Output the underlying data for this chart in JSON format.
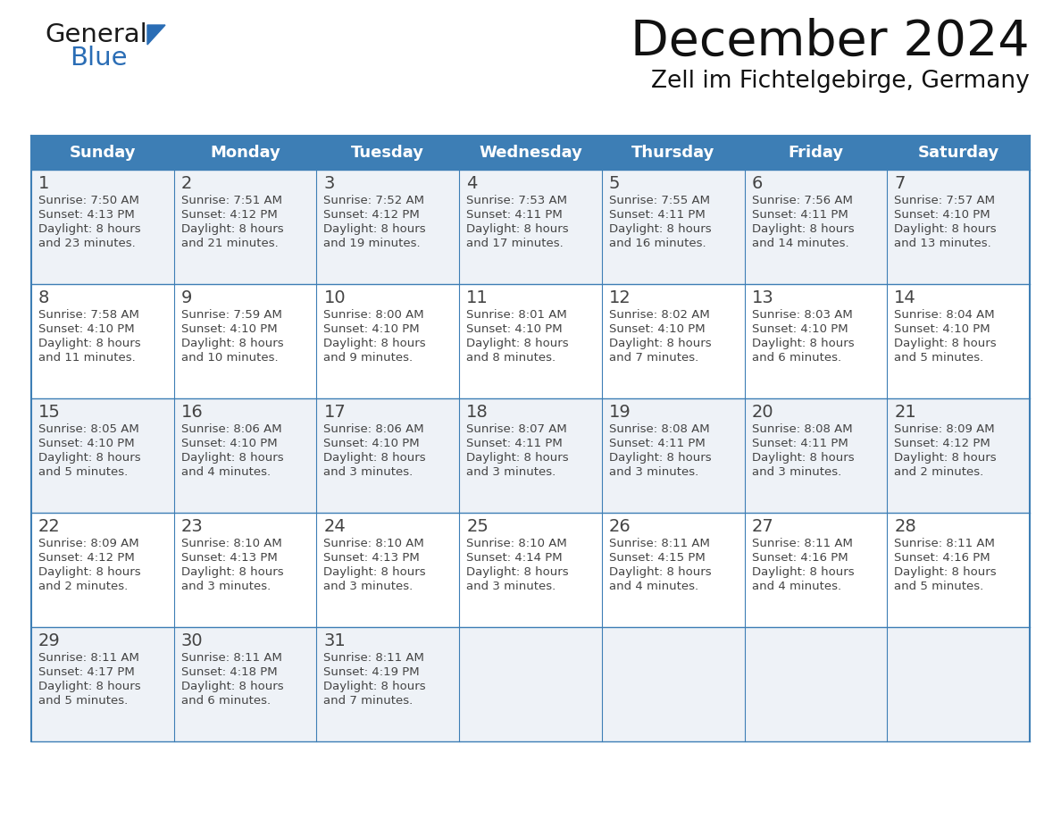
{
  "title": "December 2024",
  "subtitle": "Zell im Fichtelgebirge, Germany",
  "days_of_week": [
    "Sunday",
    "Monday",
    "Tuesday",
    "Wednesday",
    "Thursday",
    "Friday",
    "Saturday"
  ],
  "header_bg": "#3D7EB5",
  "header_text_color": "#FFFFFF",
  "row_bg_odd": "#EEF2F7",
  "row_bg_even": "#FFFFFF",
  "border_color": "#3D7EB5",
  "text_color": "#444444",
  "title_color": "#111111",
  "calendar_data": [
    [
      {
        "day": 1,
        "sunrise": "7:50 AM",
        "sunset": "4:13 PM",
        "daylight_min": "23"
      },
      {
        "day": 2,
        "sunrise": "7:51 AM",
        "sunset": "4:12 PM",
        "daylight_min": "21"
      },
      {
        "day": 3,
        "sunrise": "7:52 AM",
        "sunset": "4:12 PM",
        "daylight_min": "19"
      },
      {
        "day": 4,
        "sunrise": "7:53 AM",
        "sunset": "4:11 PM",
        "daylight_min": "17"
      },
      {
        "day": 5,
        "sunrise": "7:55 AM",
        "sunset": "4:11 PM",
        "daylight_min": "16"
      },
      {
        "day": 6,
        "sunrise": "7:56 AM",
        "sunset": "4:11 PM",
        "daylight_min": "14"
      },
      {
        "day": 7,
        "sunrise": "7:57 AM",
        "sunset": "4:10 PM",
        "daylight_min": "13"
      }
    ],
    [
      {
        "day": 8,
        "sunrise": "7:58 AM",
        "sunset": "4:10 PM",
        "daylight_min": "11"
      },
      {
        "day": 9,
        "sunrise": "7:59 AM",
        "sunset": "4:10 PM",
        "daylight_min": "10"
      },
      {
        "day": 10,
        "sunrise": "8:00 AM",
        "sunset": "4:10 PM",
        "daylight_min": "9"
      },
      {
        "day": 11,
        "sunrise": "8:01 AM",
        "sunset": "4:10 PM",
        "daylight_min": "8"
      },
      {
        "day": 12,
        "sunrise": "8:02 AM",
        "sunset": "4:10 PM",
        "daylight_min": "7"
      },
      {
        "day": 13,
        "sunrise": "8:03 AM",
        "sunset": "4:10 PM",
        "daylight_min": "6"
      },
      {
        "day": 14,
        "sunrise": "8:04 AM",
        "sunset": "4:10 PM",
        "daylight_min": "5"
      }
    ],
    [
      {
        "day": 15,
        "sunrise": "8:05 AM",
        "sunset": "4:10 PM",
        "daylight_min": "5"
      },
      {
        "day": 16,
        "sunrise": "8:06 AM",
        "sunset": "4:10 PM",
        "daylight_min": "4"
      },
      {
        "day": 17,
        "sunrise": "8:06 AM",
        "sunset": "4:10 PM",
        "daylight_min": "3"
      },
      {
        "day": 18,
        "sunrise": "8:07 AM",
        "sunset": "4:11 PM",
        "daylight_min": "3"
      },
      {
        "day": 19,
        "sunrise": "8:08 AM",
        "sunset": "4:11 PM",
        "daylight_min": "3"
      },
      {
        "day": 20,
        "sunrise": "8:08 AM",
        "sunset": "4:11 PM",
        "daylight_min": "3"
      },
      {
        "day": 21,
        "sunrise": "8:09 AM",
        "sunset": "4:12 PM",
        "daylight_min": "2"
      }
    ],
    [
      {
        "day": 22,
        "sunrise": "8:09 AM",
        "sunset": "4:12 PM",
        "daylight_min": "2"
      },
      {
        "day": 23,
        "sunrise": "8:10 AM",
        "sunset": "4:13 PM",
        "daylight_min": "3"
      },
      {
        "day": 24,
        "sunrise": "8:10 AM",
        "sunset": "4:13 PM",
        "daylight_min": "3"
      },
      {
        "day": 25,
        "sunrise": "8:10 AM",
        "sunset": "4:14 PM",
        "daylight_min": "3"
      },
      {
        "day": 26,
        "sunrise": "8:11 AM",
        "sunset": "4:15 PM",
        "daylight_min": "4"
      },
      {
        "day": 27,
        "sunrise": "8:11 AM",
        "sunset": "4:16 PM",
        "daylight_min": "4"
      },
      {
        "day": 28,
        "sunrise": "8:11 AM",
        "sunset": "4:16 PM",
        "daylight_min": "5"
      }
    ],
    [
      {
        "day": 29,
        "sunrise": "8:11 AM",
        "sunset": "4:17 PM",
        "daylight_min": "5"
      },
      {
        "day": 30,
        "sunrise": "8:11 AM",
        "sunset": "4:18 PM",
        "daylight_min": "6"
      },
      {
        "day": 31,
        "sunrise": "8:11 AM",
        "sunset": "4:19 PM",
        "daylight_min": "7"
      },
      null,
      null,
      null,
      null
    ]
  ],
  "logo_general_color": "#1A1A1A",
  "logo_blue_color": "#2A6DB5",
  "fig_width": 11.88,
  "fig_height": 9.18,
  "dpi": 100
}
